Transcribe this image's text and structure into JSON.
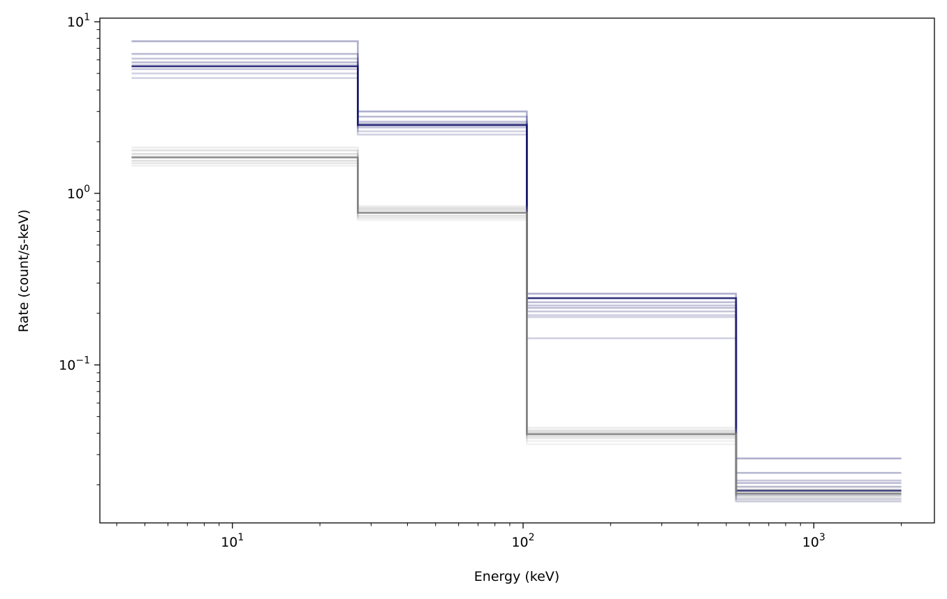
{
  "chart_data": {
    "type": "line",
    "title": "",
    "xlabel": "Energy (keV)",
    "ylabel": "Rate (count/s-keV)",
    "xscale": "log",
    "yscale": "log",
    "xlim": [
      3.5,
      2600
    ],
    "ylim": [
      0.012,
      10.5
    ],
    "grid": false,
    "x_ticks": [
      {
        "value": 10,
        "base": "10",
        "exp": "1"
      },
      {
        "value": 100,
        "base": "10",
        "exp": "2"
      },
      {
        "value": 1000,
        "base": "10",
        "exp": "3"
      }
    ],
    "y_ticks": [
      {
        "value": 0.1,
        "base": "10",
        "exp": "−1"
      },
      {
        "value": 1,
        "base": "10",
        "exp": "0"
      },
      {
        "value": 10,
        "base": "10",
        "exp": "1"
      }
    ],
    "bin_edges": [
      4.5,
      27,
      103,
      540,
      2000
    ],
    "series": [
      {
        "color": "#191970",
        "opacity": 0.9,
        "values": [
          5.5,
          2.5,
          0.245,
          0.0185
        ]
      },
      {
        "color": "#191970",
        "opacity": 0.35,
        "values": [
          7.7,
          3.0,
          0.26,
          0.0285
        ]
      },
      {
        "color": "#191970",
        "opacity": 0.3,
        "values": [
          6.5,
          2.8,
          0.232,
          0.0235
        ]
      },
      {
        "color": "#191970",
        "opacity": 0.25,
        "values": [
          6.1,
          2.62,
          0.222,
          0.0212
        ]
      },
      {
        "color": "#191970",
        "opacity": 0.3,
        "values": [
          5.8,
          2.55,
          0.215,
          0.0205
        ]
      },
      {
        "color": "#191970",
        "opacity": 0.25,
        "values": [
          5.3,
          2.42,
          0.205,
          0.0195
        ]
      },
      {
        "color": "#191970",
        "opacity": 0.2,
        "values": [
          5.0,
          2.3,
          0.195,
          0.0175
        ]
      },
      {
        "color": "#191970",
        "opacity": 0.2,
        "values": [
          4.7,
          2.2,
          0.19,
          0.0165
        ]
      },
      {
        "color": "#191970",
        "opacity": 0.2,
        "values": [
          5.6,
          2.5,
          0.143,
          0.016
        ]
      },
      {
        "color": "#808080",
        "opacity": 0.9,
        "values": [
          1.62,
          0.77,
          0.0395,
          0.0178
        ]
      },
      {
        "color": "#808080",
        "opacity": 0.25,
        "values": [
          1.78,
          0.82,
          0.0415,
          0.0188
        ]
      },
      {
        "color": "#808080",
        "opacity": 0.25,
        "values": [
          1.7,
          0.8,
          0.0405,
          0.0183
        ]
      },
      {
        "color": "#808080",
        "opacity": 0.25,
        "values": [
          1.55,
          0.74,
          0.0385,
          0.0172
        ]
      },
      {
        "color": "#808080",
        "opacity": 0.2,
        "values": [
          1.5,
          0.72,
          0.0375,
          0.0168
        ]
      },
      {
        "color": "#808080",
        "opacity": 0.15,
        "values": [
          1.85,
          0.84,
          0.043,
          0.0195
        ]
      },
      {
        "color": "#808080",
        "opacity": 0.12,
        "values": [
          1.45,
          0.7,
          0.036,
          0.0162
        ]
      },
      {
        "color": "#808080",
        "opacity": 0.1,
        "values": [
          1.66,
          0.78,
          0.0345,
          0.0175
        ]
      }
    ]
  }
}
